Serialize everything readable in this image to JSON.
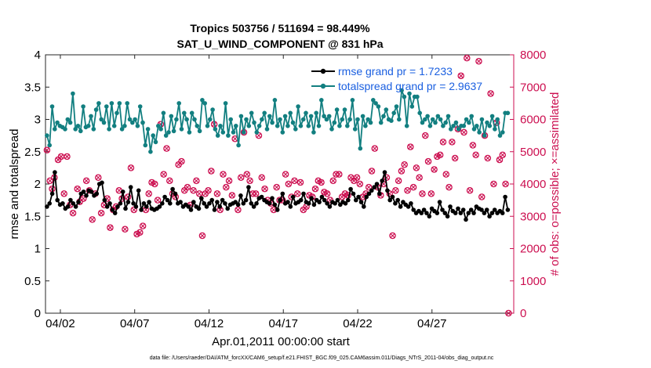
{
  "chart_data": {
    "type": "line",
    "title": [
      "Tropics 503756 / 511694 = 98.449%",
      "SAT_U_WIND_COMPONENT @ 831 hPa"
    ],
    "xlabel": "Apr.01,2011 00:00:00 start",
    "ylabel_left": "rmse and totalspread",
    "ylabel_right": "# of obs: o=possible; ×=assimilated",
    "xlim": [
      0,
      31.5
    ],
    "ylim_left": [
      0,
      4
    ],
    "ylim_right": [
      0,
      8000
    ],
    "x_ticks": [
      {
        "label": "04/02",
        "value": 1.0
      },
      {
        "label": "04/07",
        "value": 6.0
      },
      {
        "label": "04/12",
        "value": 11.0
      },
      {
        "label": "04/17",
        "value": 16.0
      },
      {
        "label": "04/22",
        "value": 21.0
      },
      {
        "label": "04/27",
        "value": 26.0
      }
    ],
    "y_ticks_left": [
      "0",
      "0.5",
      "1",
      "1.5",
      "2",
      "2.5",
      "3",
      "3.5",
      "4"
    ],
    "y_ticks_right": [
      "0",
      "1000",
      "2000",
      "3000",
      "4000",
      "5000",
      "6000",
      "7000",
      "8000"
    ],
    "legend": [
      {
        "label": "rmse grand pr = 1.7233",
        "color": "#000000"
      },
      {
        "label": "totalspread grand pr = 2.9637",
        "color": "#127f80"
      }
    ],
    "series": [
      {
        "name": "rmse",
        "axis": "left",
        "color": "#000000",
        "values": [
          1.65,
          1.7,
          1.85,
          2.18,
          1.75,
          1.68,
          1.7,
          1.62,
          1.65,
          1.75,
          1.7,
          1.65,
          1.72,
          1.85,
          1.88,
          1.82,
          1.9,
          1.88,
          1.82,
          1.85,
          2.0,
          2.02,
          1.75,
          1.65,
          1.7,
          1.6,
          1.55,
          1.65,
          1.7,
          1.88,
          1.62,
          1.72,
          1.95,
          1.7,
          1.65,
          1.9,
          1.6,
          1.7,
          1.65,
          1.72,
          1.62,
          1.6,
          1.62,
          1.65,
          1.7,
          1.8,
          1.75,
          1.7,
          1.92,
          1.85,
          1.7,
          1.72,
          1.65,
          1.68,
          1.65,
          1.6,
          1.72,
          1.65,
          1.62,
          1.78,
          1.7,
          1.65,
          1.7,
          1.75,
          1.6,
          1.72,
          1.65,
          1.75,
          1.7,
          1.62,
          1.68,
          1.7,
          1.72,
          1.68,
          1.82,
          1.7,
          1.75,
          1.95,
          1.7,
          1.65,
          1.7,
          1.78,
          1.8,
          1.75,
          1.72,
          1.7,
          1.78,
          1.68,
          1.6,
          1.75,
          1.85,
          1.7,
          1.72,
          1.65,
          1.8,
          1.7,
          1.72,
          1.75,
          1.85,
          1.72,
          1.7,
          1.78,
          1.68,
          1.75,
          1.72,
          1.8,
          1.75,
          1.7,
          1.65,
          1.72,
          1.7,
          1.75,
          1.68,
          1.72,
          1.7,
          1.75,
          1.92,
          1.85,
          1.75,
          1.8,
          1.72,
          1.65,
          1.8,
          1.85,
          1.9,
          1.95,
          2.0,
          1.85,
          2.05,
          2.18,
          1.9,
          1.75,
          1.8,
          1.7,
          1.75,
          1.65,
          1.72,
          1.68,
          1.65,
          1.7,
          1.6,
          1.55,
          1.58,
          1.55,
          1.6,
          1.55,
          1.5,
          1.62,
          1.58,
          1.55,
          1.72,
          1.6,
          1.55,
          1.5,
          1.65,
          1.58,
          1.55,
          1.62,
          1.55,
          1.6,
          1.45,
          1.55,
          1.6,
          1.55,
          1.65,
          1.62,
          1.6,
          1.55,
          1.6,
          1.5,
          1.55,
          1.6,
          1.55,
          1.58,
          1.55,
          1.8,
          1.6
        ]
      },
      {
        "name": "totalspread",
        "axis": "left",
        "color": "#127f80",
        "values": [
          2.75,
          2.6,
          3.2,
          2.85,
          2.95,
          2.9,
          2.88,
          2.85,
          3.0,
          2.95,
          3.4,
          2.85,
          2.9,
          2.82,
          3.2,
          2.88,
          2.9,
          3.05,
          2.85,
          3.15,
          3.25,
          3.0,
          2.95,
          3.2,
          2.85,
          3.25,
          2.9,
          3.1,
          3.25,
          2.85,
          2.9,
          3.25,
          3.0,
          2.95,
          3.0,
          2.9,
          3.2,
          2.95,
          2.6,
          2.85,
          2.5,
          2.75,
          2.65,
          2.9,
          2.85,
          3.1,
          2.75,
          2.8,
          3.05,
          2.82,
          3.0,
          3.25,
          2.85,
          3.1,
          3.0,
          2.8,
          3.1,
          3.0,
          2.9,
          2.82,
          3.3,
          3.25,
          2.9,
          3.0,
          3.15,
          2.85,
          2.75,
          2.9,
          2.8,
          3.25,
          2.75,
          3.0,
          2.8,
          2.9,
          2.6,
          3.05,
          2.8,
          3.0,
          2.9,
          3.1,
          2.95,
          2.8,
          2.9,
          3.0,
          3.1,
          2.85,
          3.05,
          2.95,
          3.3,
          2.9,
          3.0,
          2.8,
          3.05,
          2.9,
          3.1,
          2.95,
          2.85,
          3.2,
          2.9,
          3.0,
          3.1,
          2.9,
          3.05,
          2.8,
          3.1,
          2.9,
          3.3,
          3.05,
          3.0,
          3.05,
          2.85,
          2.95,
          3.15,
          2.9,
          3.0,
          3.15,
          2.9,
          3.0,
          3.3,
          2.85,
          3.0,
          2.55,
          3.05,
          2.9,
          3.0,
          2.95,
          3.3,
          3.25,
          3.2,
          2.95,
          3.05,
          3.15,
          3.0,
          2.98,
          3.1,
          3.2,
          3.0,
          3.45,
          3.35,
          2.9,
          3.4,
          3.2,
          3.35,
          3.35,
          3.1,
          2.95,
          3.0,
          3.05,
          2.9,
          3.0,
          2.95,
          3.05,
          3.0,
          2.9,
          2.95,
          3.05,
          2.85,
          2.9,
          2.95,
          2.85,
          2.9,
          2.9,
          3.0,
          2.95,
          3.05,
          2.85,
          2.9,
          2.8,
          3.0,
          2.75,
          2.95,
          2.9,
          3.05,
          2.85,
          3.0,
          2.75,
          2.8,
          3.1,
          3.1
        ]
      }
    ],
    "scatter_series": [
      {
        "name": "possible",
        "marker": "o",
        "axis": "right",
        "color": "#cc0f50",
        "points": [
          [
            0.1,
            5050
          ],
          [
            0.3,
            4100
          ],
          [
            0.45,
            3850
          ],
          [
            0.6,
            4200
          ],
          [
            0.85,
            4750
          ],
          [
            1.05,
            4850
          ],
          [
            1.25,
            3700
          ],
          [
            1.45,
            4850
          ],
          [
            1.65,
            3350
          ],
          [
            1.85,
            3100
          ],
          [
            2.15,
            3850
          ],
          [
            2.3,
            3450
          ],
          [
            2.55,
            3550
          ],
          [
            2.75,
            4100
          ],
          [
            2.95,
            3800
          ],
          [
            3.15,
            2900
          ],
          [
            3.35,
            3700
          ],
          [
            3.55,
            4200
          ],
          [
            3.75,
            3100
          ],
          [
            3.95,
            3350
          ],
          [
            4.15,
            3550
          ],
          [
            4.35,
            2650
          ],
          [
            4.55,
            3200
          ],
          [
            4.75,
            3300
          ],
          [
            4.95,
            3800
          ],
          [
            5.15,
            3550
          ],
          [
            5.35,
            2600
          ],
          [
            5.55,
            3600
          ],
          [
            5.75,
            4500
          ],
          [
            5.95,
            3200
          ],
          [
            6.15,
            2450
          ],
          [
            6.35,
            2500
          ],
          [
            6.55,
            2700
          ],
          [
            6.75,
            3200
          ],
          [
            6.95,
            3700
          ],
          [
            7.15,
            4050
          ],
          [
            7.35,
            4000
          ],
          [
            7.55,
            3500
          ],
          [
            7.75,
            5850
          ],
          [
            7.95,
            4300
          ],
          [
            8.15,
            5100
          ],
          [
            8.35,
            4100
          ],
          [
            8.55,
            3700
          ],
          [
            8.75,
            3600
          ],
          [
            8.95,
            4600
          ],
          [
            9.15,
            4700
          ],
          [
            9.35,
            3800
          ],
          [
            9.55,
            3900
          ],
          [
            9.75,
            3350
          ],
          [
            9.95,
            3800
          ],
          [
            10.15,
            4100
          ],
          [
            10.35,
            3700
          ],
          [
            10.55,
            2400
          ],
          [
            10.75,
            3700
          ],
          [
            10.95,
            3800
          ],
          [
            11.15,
            4400
          ],
          [
            11.35,
            5850
          ],
          [
            11.55,
            3700
          ],
          [
            11.75,
            3200
          ],
          [
            11.95,
            4300
          ],
          [
            12.15,
            3900
          ],
          [
            12.35,
            4100
          ],
          [
            12.55,
            3650
          ],
          [
            12.75,
            5400
          ],
          [
            12.95,
            3200
          ],
          [
            13.15,
            4200
          ],
          [
            13.35,
            5600
          ],
          [
            13.55,
            4300
          ],
          [
            13.75,
            4100
          ],
          [
            13.95,
            3700
          ],
          [
            14.15,
            3700
          ],
          [
            14.35,
            5500
          ],
          [
            14.55,
            4200
          ],
          [
            14.75,
            3850
          ],
          [
            14.95,
            3500
          ],
          [
            15.15,
            3400
          ],
          [
            15.35,
            3200
          ],
          [
            15.55,
            3900
          ],
          [
            15.75,
            3500
          ],
          [
            15.95,
            3500
          ],
          [
            16.15,
            4300
          ],
          [
            16.35,
            4000
          ],
          [
            16.55,
            3600
          ],
          [
            16.75,
            4100
          ],
          [
            16.95,
            3700
          ],
          [
            17.15,
            4050
          ],
          [
            17.35,
            3200
          ],
          [
            17.55,
            3300
          ],
          [
            17.75,
            3650
          ],
          [
            17.95,
            3600
          ],
          [
            18.15,
            3850
          ],
          [
            18.35,
            4100
          ],
          [
            18.55,
            4050
          ],
          [
            18.75,
            3750
          ],
          [
            18.95,
            3700
          ],
          [
            19.15,
            3500
          ],
          [
            19.35,
            4100
          ],
          [
            19.55,
            4300
          ],
          [
            19.75,
            4300
          ],
          [
            19.95,
            3600
          ],
          [
            20.15,
            3700
          ],
          [
            20.35,
            3650
          ],
          [
            20.55,
            4200
          ],
          [
            20.75,
            4100
          ],
          [
            20.95,
            4200
          ],
          [
            21.15,
            4000
          ],
          [
            21.35,
            3600
          ],
          [
            21.55,
            3700
          ],
          [
            21.75,
            3900
          ],
          [
            21.95,
            4400
          ],
          [
            22.15,
            5100
          ],
          [
            22.35,
            3900
          ],
          [
            22.55,
            3650
          ],
          [
            22.75,
            4000
          ],
          [
            22.95,
            4200
          ],
          [
            23.15,
            3700
          ],
          [
            23.35,
            2400
          ],
          [
            23.55,
            3800
          ],
          [
            23.75,
            4100
          ],
          [
            23.95,
            4400
          ],
          [
            24.15,
            4600
          ],
          [
            24.35,
            3800
          ],
          [
            24.55,
            5150
          ],
          [
            24.75,
            3900
          ],
          [
            24.95,
            4500
          ],
          [
            25.15,
            4200
          ],
          [
            25.35,
            3700
          ],
          [
            25.55,
            5500
          ],
          [
            25.75,
            4700
          ],
          [
            25.95,
            3700
          ],
          [
            26.15,
            4450
          ],
          [
            26.35,
            4850
          ],
          [
            26.55,
            4900
          ],
          [
            26.75,
            5300
          ],
          [
            26.95,
            4300
          ],
          [
            27.15,
            3900
          ],
          [
            27.35,
            5300
          ],
          [
            27.55,
            4800
          ],
          [
            27.75,
            5700
          ],
          [
            27.95,
            7350
          ],
          [
            28.15,
            5600
          ],
          [
            28.35,
            7900
          ],
          [
            28.55,
            3800
          ],
          [
            28.75,
            5200
          ],
          [
            28.95,
            4900
          ],
          [
            29.15,
            7800
          ],
          [
            29.35,
            3600
          ],
          [
            29.55,
            5500
          ],
          [
            29.75,
            4800
          ],
          [
            29.95,
            6800
          ],
          [
            30.15,
            4000
          ],
          [
            30.35,
            5900
          ],
          [
            30.55,
            4750
          ],
          [
            30.75,
            4900
          ],
          [
            30.95,
            4000
          ],
          [
            31.15,
            0
          ]
        ]
      }
    ]
  },
  "footer": "data file: /Users/raeder/DAI/ATM_forcXX/CAM6_setup/f.e21.FHIST_BGC.f09_025.CAM6assim.011/Diags_NTrS_2011-04/obs_diag_output.nc"
}
